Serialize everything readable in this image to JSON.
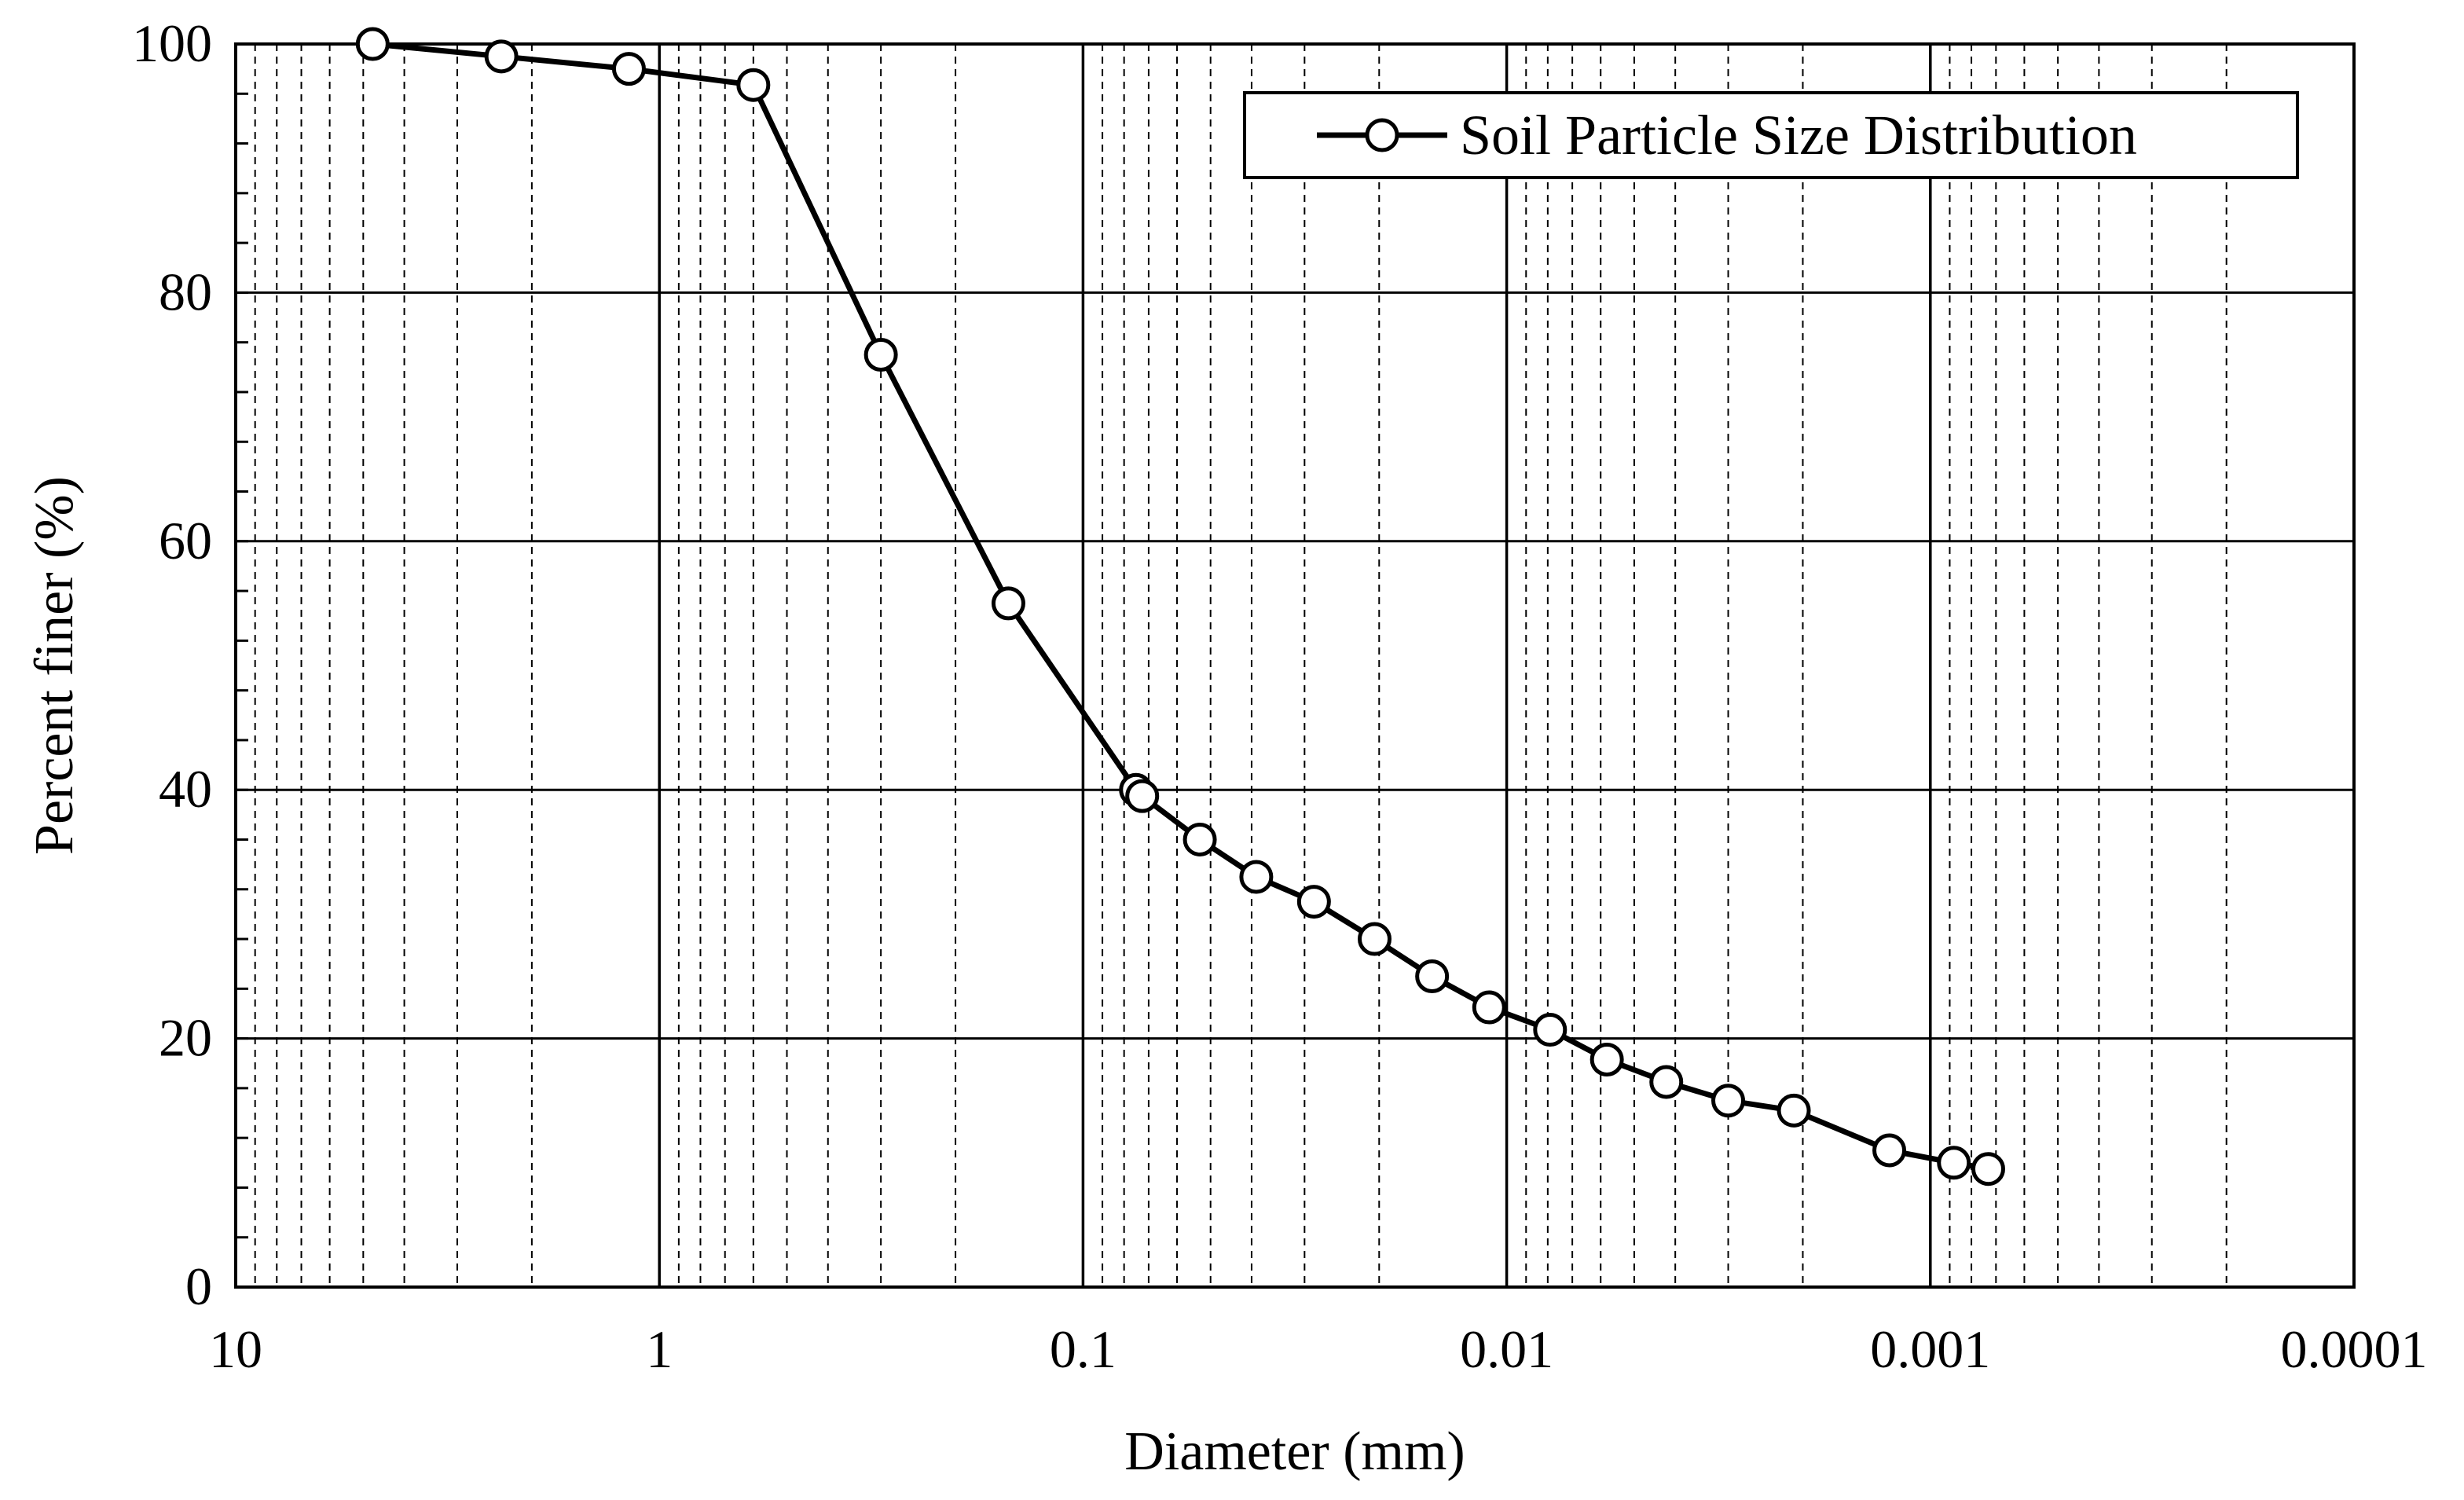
{
  "chart_data": {
    "type": "line",
    "title": "",
    "xlabel": "Diameter (mm)",
    "ylabel": "Percent finer (%)",
    "x_scale": "log",
    "x_reversed": true,
    "xlim": [
      10,
      0.0001
    ],
    "ylim": [
      0,
      100
    ],
    "x_ticks": [
      10,
      1,
      0.1,
      0.01,
      0.001,
      0.0001
    ],
    "x_tick_labels": [
      "10",
      "1",
      "0.1",
      "0.01",
      "0.001",
      "0.0001"
    ],
    "y_ticks": [
      0,
      20,
      40,
      60,
      80,
      100
    ],
    "y_tick_labels": [
      "0",
      "20",
      "40",
      "60",
      "80",
      "100"
    ],
    "grid": true,
    "legend_position": "top-right",
    "series": [
      {
        "name": "Soil Particle Size Distribution",
        "marker": "open-circle",
        "color": "#000000",
        "x": [
          4.75,
          2.36,
          1.18,
          0.6,
          0.3,
          0.15,
          0.075,
          0.0725,
          0.053,
          0.039,
          0.0285,
          0.0205,
          0.015,
          0.011,
          0.0079,
          0.0058,
          0.0042,
          0.003,
          0.0021,
          0.00125,
          0.00088,
          0.00073
        ],
        "y": [
          100,
          99,
          98,
          96.7,
          75,
          55,
          40,
          39.5,
          36,
          33,
          31,
          28,
          25,
          22.5,
          20.7,
          18.3,
          16.5,
          15,
          14.2,
          11,
          10,
          9.5
        ]
      }
    ],
    "colors": {
      "line": "#000000",
      "grid_major": "#000000",
      "grid_minor": "#000000",
      "background": "#ffffff"
    }
  }
}
